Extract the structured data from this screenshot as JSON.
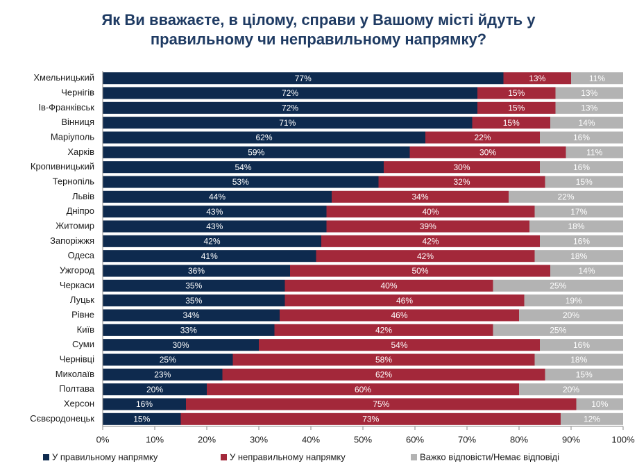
{
  "chart_data": {
    "type": "stacked_barh",
    "title": [
      "Як Ви вважаєте, в цілому, справи у Вашому місті йдуть у",
      "правильному чи неправильному напрямку?"
    ],
    "categories": [
      "Хмельницький",
      "Чернігів",
      "Ів-Франківськ",
      "Вінниця",
      "Маріуполь",
      "Харків",
      "Кропивницький",
      "Тернопіль",
      "Львів",
      "Дніпро",
      "Житомир",
      "Запоріжжя",
      "Одеса",
      "Ужгород",
      "Черкаси",
      "Луцьк",
      "Рівне",
      "Київ",
      "Суми",
      "Чернівці",
      "Миколаїв",
      "Полтава",
      "Херсон",
      "Сєвєродонецьк"
    ],
    "series": [
      {
        "name": "У правильному напрямку",
        "color": "#0e2a4e",
        "values": [
          77,
          72,
          72,
          71,
          62,
          59,
          54,
          53,
          44,
          43,
          43,
          42,
          41,
          36,
          35,
          35,
          34,
          33,
          30,
          25,
          23,
          20,
          16,
          15
        ],
        "value_labels": [
          "77%",
          "72%",
          "72%",
          "71%",
          "62%",
          "59%",
          "54%",
          "53%",
          "44%",
          "43%",
          "43%",
          "42%",
          "41%",
          "36%",
          "35%",
          "35%",
          "34%",
          "33%",
          "30%",
          "25%",
          "23%",
          "20%",
          "16%",
          "15%"
        ]
      },
      {
        "name": "У неправильному напрямку",
        "color": "#a3283a",
        "values": [
          13,
          15,
          15,
          15,
          22,
          30,
          30,
          32,
          34,
          40,
          39,
          42,
          42,
          50,
          40,
          46,
          46,
          42,
          54,
          58,
          62,
          60,
          75,
          73
        ],
        "value_labels": [
          "13%",
          "15%",
          "15%",
          "15%",
          "22%",
          "30%",
          "30%",
          "32%",
          "34%",
          "40%",
          "39%",
          "42%",
          "42%",
          "50%",
          "40%",
          "46%",
          "46%",
          "42%",
          "54%",
          "58%",
          "62%",
          "60%",
          "75%",
          "73%"
        ]
      },
      {
        "name": "Важко відповісти/Немає відповіді",
        "color": "#b3b3b3",
        "values": [
          11,
          13,
          13,
          14,
          16,
          11,
          16,
          15,
          22,
          17,
          18,
          16,
          18,
          14,
          25,
          19,
          20,
          25,
          16,
          18,
          15,
          20,
          10,
          12
        ],
        "value_labels": [
          "11%",
          "13%",
          "13%",
          "14%",
          "16%",
          "11%",
          "16%",
          "15%",
          "22%",
          "17%",
          "18%",
          "16%",
          "18%",
          "14%",
          "25%",
          "19%",
          "20%",
          "25%",
          "16%",
          "18%",
          "15%",
          "20%",
          "10%",
          "12%"
        ]
      }
    ],
    "xlim": [
      0,
      100
    ],
    "xticks": [
      {
        "value": 0,
        "label": "0%"
      },
      {
        "value": 10,
        "label": "10%"
      },
      {
        "value": 20,
        "label": "20%"
      },
      {
        "value": 30,
        "label": "30%"
      },
      {
        "value": 40,
        "label": "40%"
      },
      {
        "value": 50,
        "label": "50%"
      },
      {
        "value": 60,
        "label": "60%"
      },
      {
        "value": 70,
        "label": "70%"
      },
      {
        "value": 80,
        "label": "80%"
      },
      {
        "value": 90,
        "label": "90%"
      },
      {
        "value": 100,
        "label": "100%"
      }
    ],
    "legend": "bottom"
  }
}
